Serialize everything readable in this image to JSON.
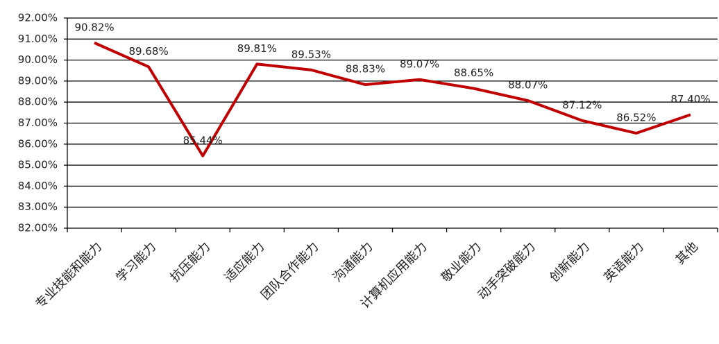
{
  "chart_data": {
    "type": "line",
    "categories": [
      "专业技能和能力",
      "学习能力",
      "抗压能力",
      "适应能力",
      "团队合作能力",
      "沟通能力",
      "计算机应用能力",
      "敬业能力",
      "动手突破能力",
      "创新能力",
      "英语能力",
      "其他"
    ],
    "values": [
      90.82,
      89.68,
      85.44,
      89.81,
      89.53,
      88.83,
      89.07,
      88.65,
      88.07,
      87.12,
      86.52,
      87.4
    ],
    "value_labels": [
      "90.82%",
      "89.68%",
      "85.44%",
      "89.81%",
      "89.53%",
      "88.83%",
      "89.07%",
      "88.65%",
      "88.07%",
      "87.12%",
      "86.52%",
      "87.40%"
    ],
    "color": "#c00000",
    "ylim": [
      82,
      92
    ],
    "yticks": [
      {
        "value": 82,
        "label": "82.00%"
      },
      {
        "value": 83,
        "label": "83.00%"
      },
      {
        "value": 84,
        "label": "84.00%"
      },
      {
        "value": 85,
        "label": "85.00%"
      },
      {
        "value": 86,
        "label": "86.00%"
      },
      {
        "value": 87,
        "label": "87.00%"
      },
      {
        "value": 88,
        "label": "88.00%"
      },
      {
        "value": 89,
        "label": "89.00%"
      },
      {
        "value": 90,
        "label": "90.00%"
      },
      {
        "value": 91,
        "label": "91.00%"
      },
      {
        "value": 92,
        "label": "92.00%"
      }
    ],
    "grid": true
  }
}
